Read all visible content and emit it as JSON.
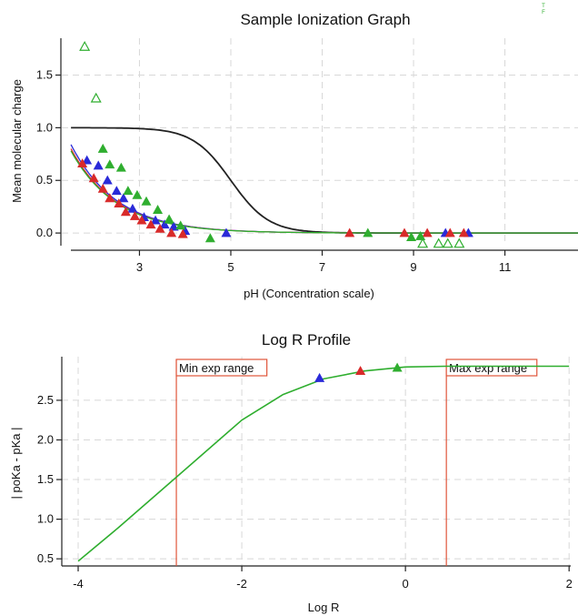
{
  "chart_data": [
    {
      "type": "scatter",
      "title": "Sample Ionization Graph",
      "xlabel": "pH (Concentration scale)",
      "ylabel": "Mean molecular charge",
      "xlim": [
        1.3,
        12.6
      ],
      "ylim": [
        -0.12,
        1.85
      ],
      "xticks": [
        3,
        5,
        7,
        9,
        11
      ],
      "yticks": [
        0.0,
        0.5,
        1.0,
        1.5
      ],
      "ytick_labels": [
        "0.0",
        "0.5",
        "1.0",
        "1.5"
      ],
      "grid": true,
      "corner_marks": [
        "T",
        "F"
      ],
      "curves": [
        {
          "color": "#222222",
          "kind": "sigmoid",
          "x0": 1.5,
          "x1": 12.6,
          "amplitude": 1.0,
          "center": 5.0,
          "slope": 2.4
        },
        {
          "color": "#2a2ad8",
          "kind": "exp-decay",
          "x0": 1.5,
          "x1": 12.6,
          "start": 0.84,
          "rate": 1.0
        },
        {
          "color": "#d82a2a",
          "kind": "exp-decay",
          "x0": 1.5,
          "x1": 12.6,
          "start": 0.8,
          "rate": 1.0
        },
        {
          "color": "#2fae2f",
          "kind": "exp-decay",
          "x0": 1.5,
          "x1": 12.6,
          "start": 0.78,
          "rate": 1.0
        }
      ],
      "series": [
        {
          "color": "#2a2ad8",
          "marker": "filled-triangle",
          "points": [
            [
              1.85,
              0.69
            ],
            [
              2.1,
              0.64
            ],
            [
              2.3,
              0.5
            ],
            [
              2.5,
              0.4
            ],
            [
              2.65,
              0.33
            ],
            [
              2.85,
              0.23
            ],
            [
              3.1,
              0.15
            ],
            [
              3.35,
              0.12
            ],
            [
              3.55,
              0.08
            ],
            [
              3.75,
              0.06
            ],
            [
              4.0,
              0.02
            ],
            [
              4.9,
              0.0
            ],
            [
              9.7,
              0.0
            ],
            [
              10.2,
              0.0
            ]
          ]
        },
        {
          "color": "#d82a2a",
          "marker": "filled-triangle",
          "points": [
            [
              1.75,
              0.66
            ],
            [
              2.0,
              0.52
            ],
            [
              2.2,
              0.42
            ],
            [
              2.35,
              0.33
            ],
            [
              2.55,
              0.28
            ],
            [
              2.7,
              0.2
            ],
            [
              2.9,
              0.16
            ],
            [
              3.05,
              0.12
            ],
            [
              3.25,
              0.08
            ],
            [
              3.45,
              0.04
            ],
            [
              3.7,
              0.0
            ],
            [
              3.95,
              -0.01
            ],
            [
              7.6,
              0.0
            ],
            [
              8.8,
              0.0
            ],
            [
              9.3,
              0.0
            ],
            [
              9.8,
              0.0
            ],
            [
              10.1,
              0.0
            ]
          ]
        },
        {
          "color": "#2fae2f",
          "marker": "filled-triangle",
          "points": [
            [
              2.2,
              0.8
            ],
            [
              2.35,
              0.65
            ],
            [
              2.6,
              0.62
            ],
            [
              2.75,
              0.4
            ],
            [
              2.95,
              0.36
            ],
            [
              3.15,
              0.3
            ],
            [
              3.4,
              0.22
            ],
            [
              3.65,
              0.13
            ],
            [
              3.9,
              0.07
            ],
            [
              4.55,
              -0.05
            ],
            [
              8.0,
              0.0
            ],
            [
              8.95,
              -0.04
            ],
            [
              9.15,
              -0.03
            ]
          ]
        },
        {
          "color": "#2fae2f",
          "marker": "open-triangle",
          "points": [
            [
              1.8,
              1.77
            ],
            [
              2.05,
              1.28
            ],
            [
              9.2,
              -0.1
            ],
            [
              9.55,
              -0.1
            ],
            [
              9.75,
              -0.1
            ],
            [
              10.0,
              -0.1
            ]
          ]
        }
      ]
    },
    {
      "type": "line",
      "title": "Log R Profile",
      "xlabel": "Log R",
      "ylabel": "| poKa - pKa |",
      "xlim": [
        -4.2,
        2.02
      ],
      "ylim": [
        0.41,
        3.05
      ],
      "xticks": [
        -4,
        -2,
        0,
        2
      ],
      "xtick_labels": [
        "-4",
        "-2",
        "0",
        "2"
      ],
      "yticks": [
        0.5,
        1.0,
        1.5,
        2.0,
        2.5
      ],
      "ytick_labels": [
        "0.5",
        "1.0",
        "1.5",
        "2.0",
        "2.5"
      ],
      "grid": true,
      "line": {
        "color": "#2fae2f",
        "x": [
          -4.0,
          -3.5,
          -3.0,
          -2.5,
          -2.0,
          -1.5,
          -1.0,
          -0.5,
          0.0,
          0.5,
          1.0,
          1.5,
          2.0
        ],
        "y": [
          0.47,
          0.9,
          1.35,
          1.8,
          2.25,
          2.57,
          2.77,
          2.87,
          2.92,
          2.93,
          2.93,
          2.93,
          2.93
        ]
      },
      "ranges": [
        {
          "label": "Min exp range",
          "x": -2.8,
          "color": "#e0553a"
        },
        {
          "label": "Max exp range",
          "x": 0.5,
          "color": "#e0553a"
        }
      ],
      "points": [
        {
          "x": -1.05,
          "y": 2.78,
          "color": "#2a2ad8"
        },
        {
          "x": -0.55,
          "y": 2.87,
          "color": "#d82a2a"
        },
        {
          "x": -0.1,
          "y": 2.91,
          "color": "#2fae2f"
        }
      ]
    }
  ]
}
